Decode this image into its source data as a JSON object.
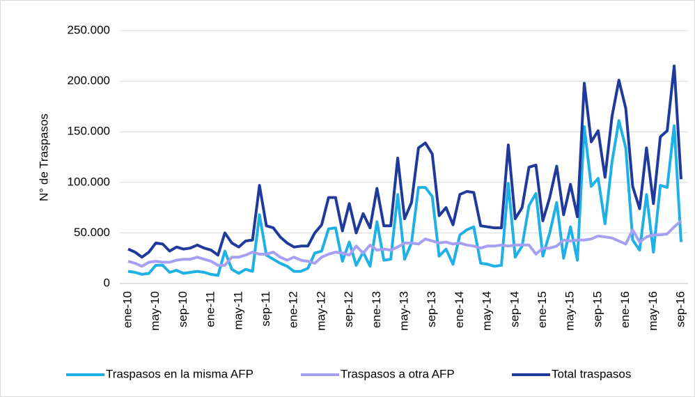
{
  "chart_data": {
    "type": "line",
    "y_label": "N° de Traspasos",
    "categories": [
      "ene-10",
      null,
      null,
      null,
      "may-10",
      null,
      null,
      null,
      "sep-10",
      null,
      null,
      null,
      "ene-11",
      null,
      null,
      null,
      "may-11",
      null,
      null,
      null,
      "sep-11",
      null,
      null,
      null,
      "ene-12",
      null,
      null,
      null,
      "may-12",
      null,
      null,
      null,
      "sep-12",
      null,
      null,
      null,
      "ene-13",
      null,
      null,
      null,
      "may-13",
      null,
      null,
      null,
      "sep-13",
      null,
      null,
      null,
      "ene-14",
      null,
      null,
      null,
      "may-14",
      null,
      null,
      null,
      "sep-14",
      null,
      null,
      null,
      "ene-15",
      null,
      null,
      null,
      "may-15",
      null,
      null,
      null,
      "sep-15",
      null,
      null,
      null,
      "ene-16",
      null,
      null,
      null,
      "may-16",
      null,
      null,
      null,
      "sep-16"
    ],
    "series": [
      {
        "name": "Traspasos en la misma AFP",
        "color": "#1fb1e6",
        "values": [
          12000,
          11000,
          9000,
          10000,
          18000,
          18000,
          11000,
          13000,
          10000,
          11000,
          12000,
          11000,
          9000,
          8000,
          32000,
          14000,
          10000,
          14000,
          12000,
          68000,
          28000,
          24000,
          20000,
          17000,
          12000,
          12000,
          15000,
          30000,
          32000,
          54000,
          55000,
          22000,
          41000,
          18000,
          31000,
          17000,
          61000,
          23000,
          24000,
          88000,
          24000,
          40000,
          95000,
          95000,
          86000,
          27000,
          34000,
          19000,
          48000,
          53000,
          56000,
          20000,
          19000,
          17000,
          18000,
          99000,
          26000,
          37000,
          77000,
          89000,
          27000,
          50000,
          80000,
          25000,
          56000,
          23000,
          155000,
          96000,
          104000,
          59000,
          120000,
          161000,
          134000,
          43000,
          33000,
          88000,
          31000,
          97000,
          95000,
          156000,
          41000
        ]
      },
      {
        "name": "Traspasos a otra AFP",
        "color": "#a69ff2",
        "values": [
          22000,
          20000,
          17000,
          21000,
          22000,
          21000,
          21000,
          23000,
          24000,
          24000,
          26000,
          24000,
          22000,
          18000,
          18000,
          26000,
          26000,
          28000,
          31000,
          29000,
          29000,
          31000,
          26000,
          23000,
          26000,
          23000,
          22000,
          20000,
          26000,
          29000,
          31000,
          30000,
          28000,
          37000,
          30000,
          38000,
          33000,
          34000,
          33000,
          36000,
          40000,
          40000,
          39000,
          44000,
          42000,
          40000,
          41000,
          39000,
          40000,
          38000,
          37000,
          35000,
          37000,
          37000,
          38000,
          37000,
          38000,
          38000,
          38000,
          29000,
          35000,
          35000,
          37000,
          43000,
          42000,
          43000,
          43000,
          44000,
          47000,
          46000,
          45000,
          42000,
          39000,
          53000,
          41000,
          46000,
          48000,
          48000,
          49000,
          56000,
          62000
        ]
      },
      {
        "name": "Total traspasos",
        "color": "#1f3a9a",
        "values": [
          34000,
          31000,
          26000,
          31000,
          40000,
          39000,
          32000,
          36000,
          34000,
          35000,
          38000,
          35000,
          33000,
          28000,
          50000,
          40000,
          36000,
          42000,
          43000,
          97000,
          57000,
          55000,
          46000,
          40000,
          36000,
          37000,
          37000,
          50000,
          58000,
          85000,
          85000,
          52000,
          79000,
          50000,
          69000,
          55000,
          94000,
          57000,
          57000,
          124000,
          64000,
          80000,
          134000,
          139000,
          128000,
          67000,
          75000,
          58000,
          88000,
          91000,
          90000,
          57000,
          56000,
          55000,
          55000,
          137000,
          64000,
          75000,
          115000,
          117000,
          62000,
          85000,
          116000,
          68000,
          98000,
          66000,
          198000,
          140000,
          151000,
          105000,
          165000,
          201000,
          173000,
          96000,
          74000,
          134000,
          79000,
          145000,
          151000,
          215000,
          103000
        ]
      }
    ],
    "ylim": [
      0,
      250000
    ],
    "yticks": [
      0,
      {
        "value": 50000,
        "label": "50.000"
      },
      {
        "value": 100000,
        "label": "100.000"
      },
      {
        "value": 150000,
        "label": "150.000"
      },
      {
        "value": 200000,
        "label": "200.000"
      },
      {
        "value": 250000,
        "label": "250.000"
      }
    ],
    "grid": true,
    "legend": "bottom"
  }
}
